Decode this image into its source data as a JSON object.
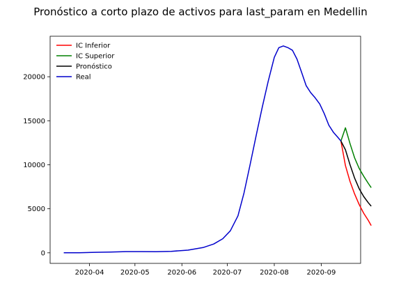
{
  "chart_data": {
    "type": "line",
    "title": "Pronóstico a corto plazo de activos para last_param en Medellin",
    "xlabel": "",
    "ylabel": "",
    "x_range": [
      "2020-03-06",
      "2020-09-27"
    ],
    "ylim": [
      -1200,
      24600
    ],
    "yticks": [
      0,
      5000,
      10000,
      15000,
      20000
    ],
    "xticks": [
      "2020-04",
      "2020-05",
      "2020-06",
      "2020-07",
      "2020-08",
      "2020-09"
    ],
    "grid": false,
    "legend_position": "top-left",
    "series": [
      {
        "name": "IC Inferior",
        "color": "#ff0000",
        "x": [
          "2020-09-14",
          "2020-09-17",
          "2020-09-20",
          "2020-09-23",
          "2020-09-26",
          "2020-09-29",
          "2020-10-02",
          "2020-10-04"
        ],
        "y": [
          12700,
          9900,
          8100,
          6700,
          5500,
          4500,
          3700,
          3100
        ]
      },
      {
        "name": "IC Superior",
        "color": "#008000",
        "x": [
          "2020-09-14",
          "2020-09-17",
          "2020-09-20",
          "2020-09-23",
          "2020-09-26",
          "2020-09-29",
          "2020-10-02",
          "2020-10-04"
        ],
        "y": [
          12700,
          14200,
          12400,
          10800,
          9600,
          8700,
          7900,
          7400
        ]
      },
      {
        "name": "Pronóstico",
        "color": "#000000",
        "x": [
          "2020-09-14",
          "2020-09-17",
          "2020-09-20",
          "2020-09-23",
          "2020-09-26",
          "2020-09-29",
          "2020-10-02",
          "2020-10-04"
        ],
        "y": [
          12700,
          11700,
          10000,
          8500,
          7300,
          6400,
          5700,
          5300
        ]
      },
      {
        "name": "Real",
        "color": "#0000cc",
        "x": [
          "2020-03-15",
          "2020-03-25",
          "2020-04-05",
          "2020-04-15",
          "2020-04-25",
          "2020-05-05",
          "2020-05-15",
          "2020-05-25",
          "2020-06-05",
          "2020-06-15",
          "2020-06-22",
          "2020-06-28",
          "2020-07-03",
          "2020-07-08",
          "2020-07-12",
          "2020-07-16",
          "2020-07-20",
          "2020-07-24",
          "2020-07-28",
          "2020-08-01",
          "2020-08-04",
          "2020-08-07",
          "2020-08-10",
          "2020-08-13",
          "2020-08-16",
          "2020-08-19",
          "2020-08-22",
          "2020-08-25",
          "2020-08-28",
          "2020-08-31",
          "2020-09-03",
          "2020-09-06",
          "2020-09-09",
          "2020-09-12",
          "2020-09-14"
        ],
        "y": [
          0,
          0,
          60,
          80,
          140,
          140,
          120,
          170,
          300,
          600,
          1000,
          1600,
          2500,
          4200,
          6800,
          10000,
          13300,
          16500,
          19500,
          22200,
          23300,
          23500,
          23300,
          23000,
          22000,
          20500,
          19000,
          18200,
          17600,
          16900,
          15800,
          14500,
          13700,
          13100,
          12700
        ]
      }
    ]
  }
}
